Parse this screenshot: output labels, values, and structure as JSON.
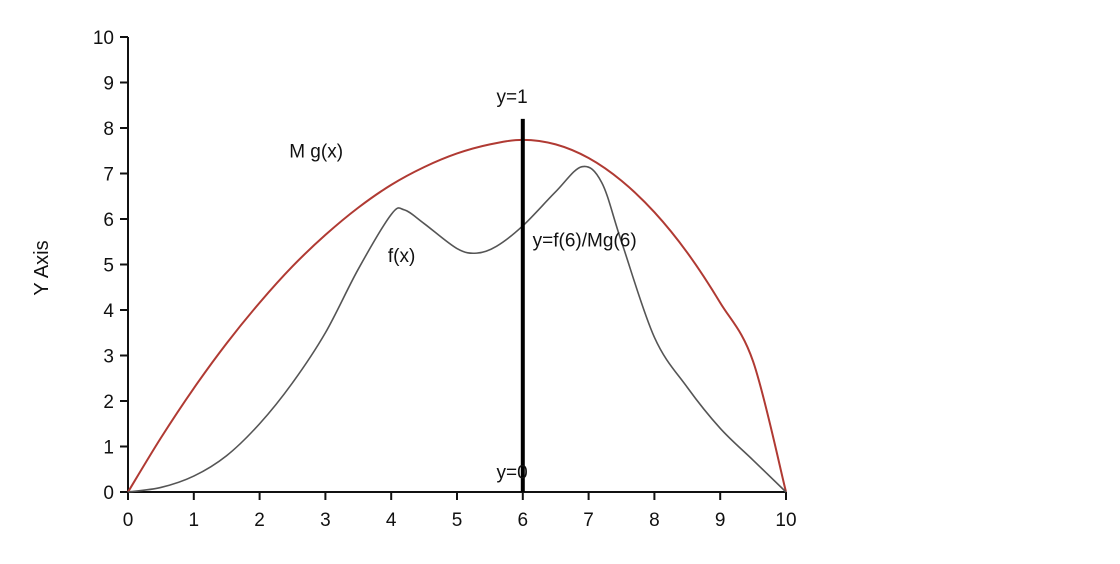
{
  "chart_data": {
    "type": "line",
    "title": "",
    "xlabel": "",
    "ylabel": "Y Axis",
    "xlim": [
      0,
      10
    ],
    "ylim": [
      0,
      10
    ],
    "xticks": [
      "0",
      "1",
      "2",
      "3",
      "4",
      "5",
      "6",
      "7",
      "8",
      "9",
      "10"
    ],
    "yticks": [
      "0",
      "1",
      "2",
      "3",
      "4",
      "5",
      "6",
      "7",
      "8",
      "9",
      "10"
    ],
    "grid": false,
    "legend": "none",
    "series": [
      {
        "color": "#b03a33",
        "x": [
          0,
          0.5,
          1,
          1.5,
          2,
          2.5,
          3,
          3.5,
          4,
          4.5,
          5,
          5.5,
          6,
          6.5,
          7,
          7.5,
          8,
          8.5,
          9,
          9.5,
          10
        ],
        "y": [
          0,
          1.19,
          2.28,
          3.27,
          4.16,
          4.96,
          5.65,
          6.25,
          6.75,
          7.14,
          7.44,
          7.64,
          7.74,
          7.64,
          7.34,
          6.84,
          6.15,
          5.26,
          4.16,
          2.87,
          0
        ]
      },
      {
        "color": "#555555",
        "x": [
          0,
          0.5,
          1,
          1.5,
          2,
          2.5,
          3,
          3.5,
          4,
          4.2,
          4.5,
          5,
          5.3,
          5.6,
          6,
          6.5,
          6.9,
          7.2,
          7.5,
          8,
          8.5,
          9,
          9.5,
          10
        ],
        "y": [
          0,
          0.1,
          0.35,
          0.8,
          1.5,
          2.4,
          3.5,
          4.9,
          6.1,
          6.2,
          5.9,
          5.35,
          5.25,
          5.4,
          5.85,
          6.6,
          7.15,
          6.8,
          5.5,
          3.4,
          2.3,
          1.4,
          0.7,
          0
        ]
      }
    ],
    "vertical_line": {
      "x": 6,
      "y": [
        0,
        8.2
      ],
      "color": "#000000"
    },
    "annotations": [
      {
        "text": "M g(x)",
        "x": 2.45,
        "y": 7.35
      },
      {
        "text": "f(x)",
        "x": 3.95,
        "y": 5.05
      },
      {
        "text": "y=1",
        "x": 5.6,
        "y": 8.55
      },
      {
        "text": "y=f(6)/Mg(6)",
        "x": 6.15,
        "y": 5.4
      },
      {
        "text": "y=0",
        "x": 5.6,
        "y": 0.3
      }
    ]
  }
}
